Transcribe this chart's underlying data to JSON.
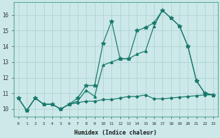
{
  "xlabel": "Humidex (Indice chaleur)",
  "x": [
    0,
    1,
    2,
    3,
    4,
    5,
    6,
    7,
    8,
    9,
    10,
    11,
    12,
    13,
    14,
    15,
    16,
    17,
    18,
    19,
    20,
    21,
    22,
    23
  ],
  "line1": [
    10.7,
    9.9,
    10.7,
    10.3,
    10.3,
    10.0,
    10.3,
    10.7,
    11.5,
    11.5,
    14.2,
    15.6,
    13.2,
    13.2,
    15.0,
    15.2,
    15.5,
    16.3,
    15.8,
    15.3,
    14.0,
    11.8,
    11.0,
    10.9
  ],
  "line2": [
    10.7,
    9.9,
    10.7,
    10.3,
    10.3,
    10.0,
    10.3,
    10.5,
    11.2,
    10.8,
    12.8,
    13.0,
    13.2,
    13.2,
    13.5,
    13.7,
    15.3,
    16.3,
    15.8,
    15.3,
    14.0,
    11.8,
    11.0,
    10.9
  ],
  "line3": [
    10.7,
    9.9,
    10.7,
    10.3,
    10.3,
    10.0,
    10.3,
    10.4,
    10.5,
    10.5,
    10.6,
    10.6,
    10.7,
    10.8,
    10.8,
    10.9,
    10.65,
    10.65,
    10.7,
    10.75,
    10.8,
    10.85,
    10.9,
    10.9
  ],
  "line_color": "#1a7a6e",
  "bg_color": "#cce8e8",
  "grid_color": "#aacfcf",
  "ylim": [
    9.5,
    16.8
  ],
  "yticks": [
    10,
    11,
    12,
    13,
    14,
    15,
    16
  ],
  "xticks": [
    0,
    1,
    2,
    3,
    4,
    5,
    6,
    7,
    8,
    9,
    10,
    11,
    12,
    13,
    14,
    15,
    16,
    17,
    18,
    19,
    20,
    21,
    22,
    23
  ]
}
